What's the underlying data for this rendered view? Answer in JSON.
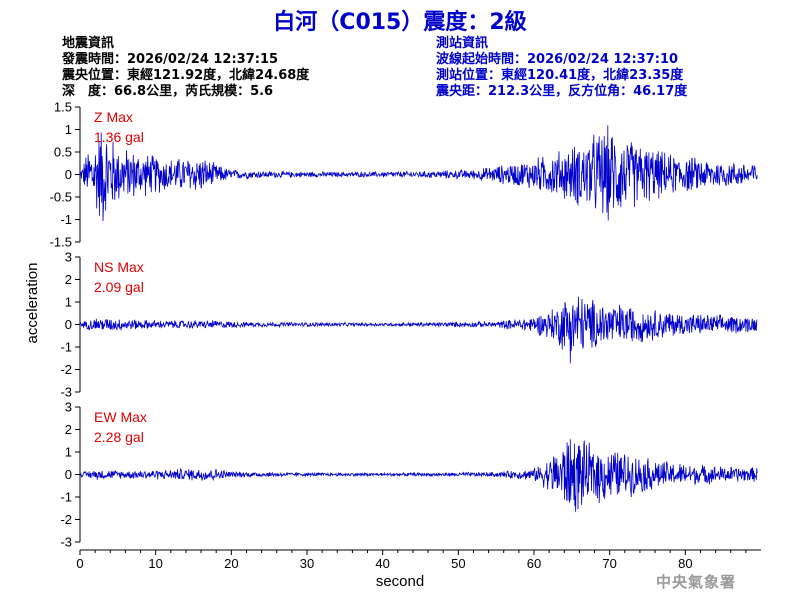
{
  "header": {
    "title": "白河（C015）震度：2級"
  },
  "earthquake_info": {
    "heading": "地震資訊",
    "origin_time": "發震時間：2026/02/24 12:37:15",
    "epicenter": "震央位置：東經121.92度，北緯24.68度",
    "depth_magnitude": "深　度：66.8公里，芮氏規模：5.6"
  },
  "station_info": {
    "heading": "測站資訊",
    "wave_start": "波線起始時間：2026/02/24 12:37:10",
    "location": "測站位置：東經120.41度，北緯23.35度",
    "distance": "震央距：212.3公里，反方位角：46.17度"
  },
  "agency": "中央氣象署",
  "colors": {
    "trace": "#0000cc",
    "max_label": "#e00000",
    "axis": "#000000"
  },
  "chart_data": {
    "type": "line",
    "xlabel": "second",
    "ylabel": "acceleration",
    "xlim": [
      0,
      90
    ],
    "x_ticks": [
      "0",
      "10",
      "20",
      "30",
      "40",
      "50",
      "60",
      "70",
      "80"
    ],
    "panels": [
      {
        "name": "Z",
        "max_label": "Z Max",
        "max_value": "1.36 gal",
        "ylim": [
          -1.5,
          1.5
        ],
        "y_ticks": [
          "1.5",
          "1",
          "0.5",
          "0",
          "-0.5",
          "-1",
          "-1.5"
        ],
        "envelope": [
          [
            0,
            0.05
          ],
          [
            1,
            0.6
          ],
          [
            2,
            0.9
          ],
          [
            3,
            1.3
          ],
          [
            5,
            0.7
          ],
          [
            8,
            0.55
          ],
          [
            12,
            0.4
          ],
          [
            16,
            0.45
          ],
          [
            18,
            0.25
          ],
          [
            20,
            0.12
          ],
          [
            25,
            0.08
          ],
          [
            35,
            0.06
          ],
          [
            45,
            0.08
          ],
          [
            52,
            0.12
          ],
          [
            58,
            0.3
          ],
          [
            62,
            0.5
          ],
          [
            65,
            0.7
          ],
          [
            68,
            1.0
          ],
          [
            70,
            1.2
          ],
          [
            72,
            0.9
          ],
          [
            75,
            0.7
          ],
          [
            78,
            0.5
          ],
          [
            82,
            0.4
          ],
          [
            86,
            0.3
          ],
          [
            89.5,
            0.3
          ]
        ]
      },
      {
        "name": "NS",
        "max_label": "NS Max",
        "max_value": "2.09 gal",
        "ylim": [
          -3,
          3
        ],
        "y_ticks": [
          "3",
          "2",
          "1",
          "0",
          "-1",
          "-2",
          "-3"
        ],
        "envelope": [
          [
            0,
            0.1
          ],
          [
            2,
            0.35
          ],
          [
            5,
            0.3
          ],
          [
            10,
            0.2
          ],
          [
            18,
            0.2
          ],
          [
            22,
            0.12
          ],
          [
            40,
            0.08
          ],
          [
            55,
            0.15
          ],
          [
            60,
            0.4
          ],
          [
            63,
            0.9
          ],
          [
            65,
            1.9
          ],
          [
            67,
            1.3
          ],
          [
            70,
            1.1
          ],
          [
            75,
            0.8
          ],
          [
            80,
            0.55
          ],
          [
            85,
            0.45
          ],
          [
            89.5,
            0.4
          ]
        ]
      },
      {
        "name": "EW",
        "max_label": "EW Max",
        "max_value": "2.28 gal",
        "ylim": [
          -3,
          3
        ],
        "y_ticks": [
          "3",
          "2",
          "1",
          "0",
          "-1",
          "-2",
          "-3"
        ],
        "envelope": [
          [
            0,
            0.1
          ],
          [
            2,
            0.25
          ],
          [
            5,
            0.2
          ],
          [
            12,
            0.25
          ],
          [
            17,
            0.35
          ],
          [
            20,
            0.15
          ],
          [
            30,
            0.08
          ],
          [
            45,
            0.08
          ],
          [
            55,
            0.12
          ],
          [
            60,
            0.3
          ],
          [
            62,
            0.8
          ],
          [
            65,
            2.1
          ],
          [
            67,
            1.5
          ],
          [
            70,
            1.3
          ],
          [
            73,
            1.0
          ],
          [
            78,
            0.6
          ],
          [
            85,
            0.4
          ],
          [
            89.5,
            0.35
          ]
        ]
      }
    ]
  }
}
